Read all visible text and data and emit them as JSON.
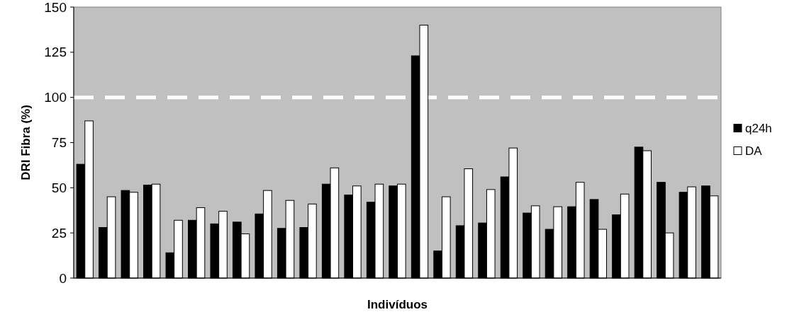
{
  "chart_data": {
    "type": "bar",
    "xlabel": "Indivíduos",
    "ylabel": "DRI Fibra (%)",
    "categories": [
      null,
      null,
      null,
      null,
      null,
      null,
      null,
      null,
      null,
      null,
      null,
      null,
      null,
      null,
      null,
      null,
      null,
      null,
      null,
      null,
      null,
      null,
      null,
      null,
      null,
      null,
      null,
      null,
      null
    ],
    "series": [
      {
        "name": "q24h",
        "color": "#000000",
        "values": [
          63,
          28,
          48.5,
          51.5,
          14,
          32,
          30,
          31,
          35.5,
          27.5,
          28,
          52,
          46,
          42,
          51,
          123,
          15,
          29,
          30.5,
          56,
          36,
          27,
          39.5,
          43.5,
          35,
          72.5,
          53,
          47.5,
          51
        ]
      },
      {
        "name": "DA",
        "color": "#ffffff",
        "values": [
          87,
          45,
          47.5,
          52,
          32,
          39,
          37,
          24.5,
          48.5,
          43,
          41,
          61,
          51,
          52,
          52,
          140,
          45,
          60.5,
          49,
          72,
          40,
          39.5,
          53,
          27,
          46.5,
          70.5,
          25,
          50.5,
          45.5
        ]
      }
    ],
    "ylim": [
      0,
      150
    ],
    "yticks": [
      0,
      25,
      50,
      75,
      100,
      125,
      150
    ],
    "legend": "right",
    "grid": false,
    "ref_lines": [
      {
        "axis": "y",
        "value": 100,
        "color": "#ffffff",
        "line_style": "dashed"
      }
    ]
  }
}
